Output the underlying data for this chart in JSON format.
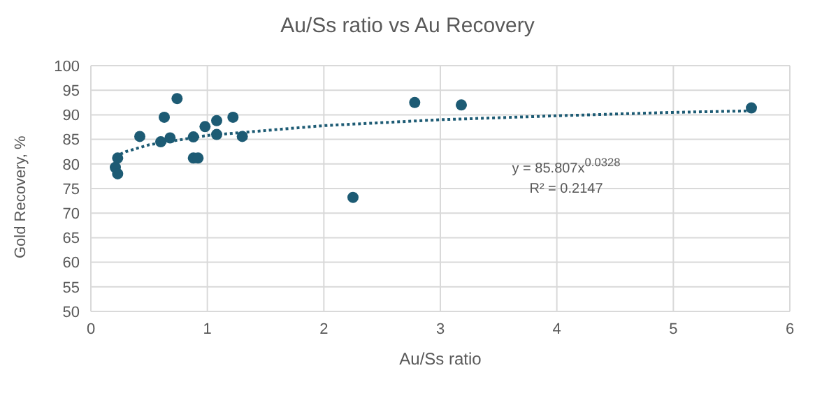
{
  "chart_data": {
    "type": "scatter",
    "title": "Au/Ss ratio vs Au Recovery",
    "xlabel": "Au/Ss ratio",
    "ylabel": "Gold Recovery, %",
    "series": [
      {
        "type": "scatter",
        "color": "#1d5b74",
        "marker": "circle",
        "x": [
          0.21,
          0.23,
          0.23,
          0.42,
          0.6,
          0.63,
          0.68,
          0.74,
          0.88,
          0.92,
          0.88,
          0.98,
          1.08,
          1.08,
          1.22,
          1.3,
          2.25,
          2.78,
          3.18,
          5.67
        ],
        "values": [
          79.3,
          78.0,
          81.2,
          85.6,
          84.5,
          89.5,
          85.3,
          93.3,
          81.2,
          81.2,
          85.5,
          87.6,
          88.8,
          86.0,
          89.5,
          85.6,
          73.2,
          92.5,
          92.0,
          91.4
        ]
      },
      {
        "type": "line",
        "color": "#1d5b74",
        "line_style": "dotted",
        "marker": "none",
        "x": [
          0.21,
          0.3,
          0.5,
          1,
          2,
          3,
          4,
          5,
          5.67
        ],
        "values": [
          81.5,
          82.5,
          83.9,
          85.8,
          87.8,
          89.0,
          89.8,
          90.5,
          90.8
        ]
      }
    ],
    "xlim": [
      0,
      6
    ],
    "xticks": [
      0,
      1,
      2,
      3,
      4,
      5,
      6
    ],
    "ylim": [
      50,
      100
    ],
    "yticks": [
      50,
      55,
      60,
      65,
      70,
      75,
      80,
      85,
      90,
      95,
      100
    ],
    "grid": true,
    "annotations": [
      "y = 85.807x$^{0.0328}$",
      "R² = 0.2147"
    ]
  }
}
